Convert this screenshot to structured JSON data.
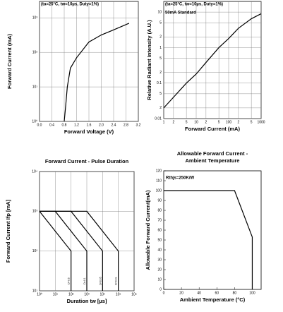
{
  "chart_data": [
    {
      "type": "line",
      "x_label": "Forward Voltage (V)",
      "y_label": "Forward Current (mA)",
      "annotations": [
        "(ta=25°C, tw=10µs, Duty=1%)"
      ],
      "ylog": true,
      "grid": true,
      "color": "#000000",
      "xlim": [
        0,
        3.2
      ],
      "ylim": [
        1,
        3000
      ],
      "xticks": [
        {
          "value": 0,
          "label": "0.0"
        },
        0.4,
        0.8,
        1.2,
        1.6,
        {
          "value": 2,
          "label": "2.0"
        },
        2.4,
        2.8,
        3.2
      ],
      "yticks": [
        {
          "value": 1,
          "label": "10⁰"
        },
        {
          "value": 10,
          "label": "10¹"
        },
        {
          "value": 100,
          "label": "10²"
        },
        {
          "value": 1000,
          "label": "10³"
        }
      ],
      "series": [
        {
          "x": [
            0.8,
            0.85,
            0.9,
            1.0,
            1.2,
            1.6,
            2.0,
            2.4,
            2.9
          ],
          "values": [
            1,
            3,
            10,
            35,
            70,
            200,
            320,
            450,
            700
          ]
        }
      ]
    },
    {
      "type": "line",
      "x_label": "Forward Current (mA)",
      "y_label": "Relative Radiant Intensity (A.U.)",
      "annotations": [
        "(ta=25°C, tw=10µs, Duty=1%)",
        "50mA Standard"
      ],
      "xlog": true,
      "ylog": true,
      "grid": true,
      "color": "#000000",
      "xlim": [
        1,
        1000
      ],
      "ylim": [
        0.01,
        20
      ],
      "xticks": [
        1,
        2,
        5,
        10,
        {
          "value": 20,
          "label": "2"
        },
        {
          "value": 50,
          "label": "5"
        },
        100,
        {
          "value": 200,
          "label": "2"
        },
        {
          "value": 500,
          "label": "5"
        },
        1000
      ],
      "yticks": [
        0.01,
        {
          "value": 0.02,
          "label": "2"
        },
        {
          "value": 0.05,
          "label": "5"
        },
        0.1,
        {
          "value": 0.2,
          "label": "2"
        },
        {
          "value": 0.5,
          "label": "5"
        },
        1,
        {
          "value": 2,
          "label": "2"
        },
        {
          "value": 5,
          "label": "5"
        },
        10
      ],
      "series": [
        {
          "x": [
            1,
            2,
            5,
            10,
            20,
            50,
            100,
            200,
            500,
            1000
          ],
          "values": [
            0.02,
            0.04,
            0.1,
            0.18,
            0.38,
            1,
            1.8,
            3.5,
            6.5,
            9
          ]
        }
      ]
    },
    {
      "type": "line",
      "title_lines": [
        "Forward Current - Pulse Duration"
      ],
      "x_label": "Duration tw [µs]",
      "y_label": "Forward Current Ifp [mA]",
      "annotations": [],
      "xlog": true,
      "ylog": true,
      "grid": true,
      "color": "#000000",
      "xlim": [
        1,
        1000000
      ],
      "ylim": [
        10,
        10000
      ],
      "xticks": [
        {
          "value": 1,
          "label": "10⁰"
        },
        {
          "value": 10,
          "label": "10¹"
        },
        {
          "value": 100,
          "label": "10²"
        },
        {
          "value": 1000,
          "label": "10³"
        },
        {
          "value": 10000,
          "label": "10⁴"
        },
        {
          "value": 100000,
          "label": "10⁵"
        },
        {
          "value": 1000000,
          "label": "10⁶"
        }
      ],
      "yticks": [
        {
          "value": 10,
          "label": "10¹"
        },
        {
          "value": 100,
          "label": "10²"
        },
        {
          "value": 1000,
          "label": "10³"
        },
        {
          "value": 10000,
          "label": "10⁴"
        }
      ],
      "series": [
        {
          "name": "D=0.5",
          "x": [
            1,
            100,
            100
          ],
          "values": [
            1000,
            100,
            10
          ]
        },
        {
          "name": "D=0.1",
          "x": [
            1,
            10,
            1000,
            1000
          ],
          "values": [
            1000,
            1000,
            100,
            10
          ]
        },
        {
          "name": "D=0.05",
          "x": [
            1,
            100,
            10000,
            10000
          ],
          "values": [
            1000,
            1000,
            100,
            10
          ]
        },
        {
          "name": "D=0.01",
          "x": [
            1,
            1000,
            100000,
            100000
          ],
          "values": [
            1000,
            1000,
            100,
            10
          ]
        }
      ]
    },
    {
      "type": "line",
      "title_lines": [
        "Allowable Forward Current -",
        "Ambient Temperature"
      ],
      "x_label": "Ambient Temperature (°C)",
      "y_label": "Allowable Forward Current(mA)",
      "annotations": [
        "Rthjs=250K/W"
      ],
      "grid": false,
      "color": "#000000",
      "xlim": [
        0,
        110
      ],
      "ylim": [
        0,
        120
      ],
      "xticks": [
        0,
        20,
        40,
        60,
        80,
        100
      ],
      "yticks": [
        0,
        10,
        20,
        30,
        40,
        50,
        60,
        70,
        80,
        90,
        100,
        110,
        120
      ],
      "series": [
        {
          "x": [
            0,
            80,
            100,
            100
          ],
          "values": [
            100,
            100,
            53,
            0
          ]
        }
      ]
    }
  ]
}
